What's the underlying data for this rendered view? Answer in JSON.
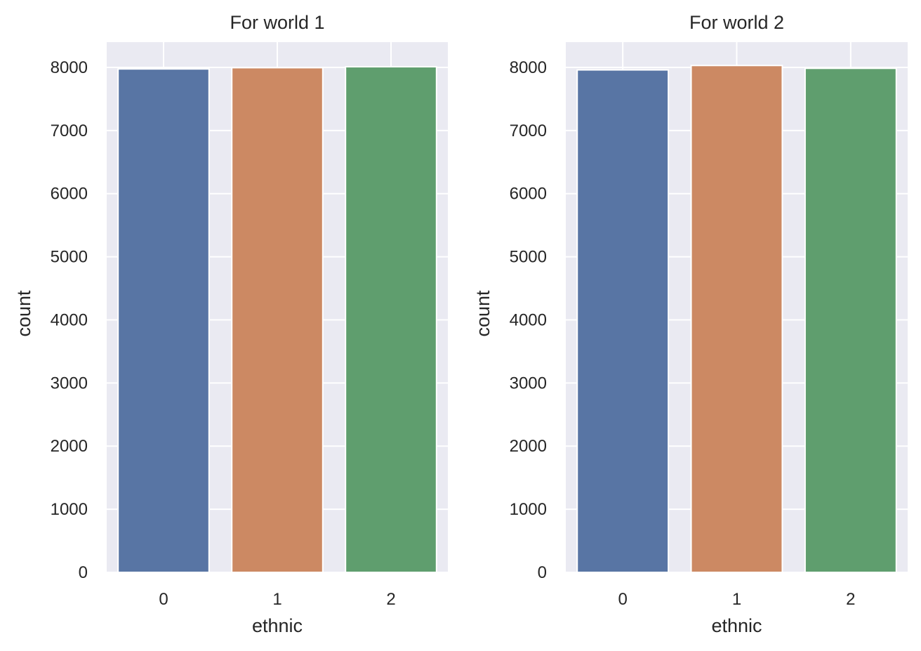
{
  "chart_data": [
    {
      "type": "bar",
      "title": "For world 1",
      "xlabel": "ethnic",
      "ylabel": "count",
      "categories": [
        "0",
        "1",
        "2"
      ],
      "values": [
        7975,
        7995,
        8010
      ],
      "colors": [
        "#5875a4",
        "#cc8963",
        "#5f9e6e"
      ],
      "ylim": [
        0,
        8400
      ],
      "yticks": [
        0,
        1000,
        2000,
        3000,
        4000,
        5000,
        6000,
        7000,
        8000
      ],
      "grid": true,
      "style": "seaborn darkgrid"
    },
    {
      "type": "bar",
      "title": "For world 2",
      "xlabel": "ethnic",
      "ylabel": "count",
      "categories": [
        "0",
        "1",
        "2"
      ],
      "values": [
        7960,
        8030,
        7985
      ],
      "colors": [
        "#5875a4",
        "#cc8963",
        "#5f9e6e"
      ],
      "ylim": [
        0,
        8400
      ],
      "yticks": [
        0,
        1000,
        2000,
        3000,
        4000,
        5000,
        6000,
        7000,
        8000
      ],
      "grid": true,
      "style": "seaborn darkgrid"
    }
  ]
}
